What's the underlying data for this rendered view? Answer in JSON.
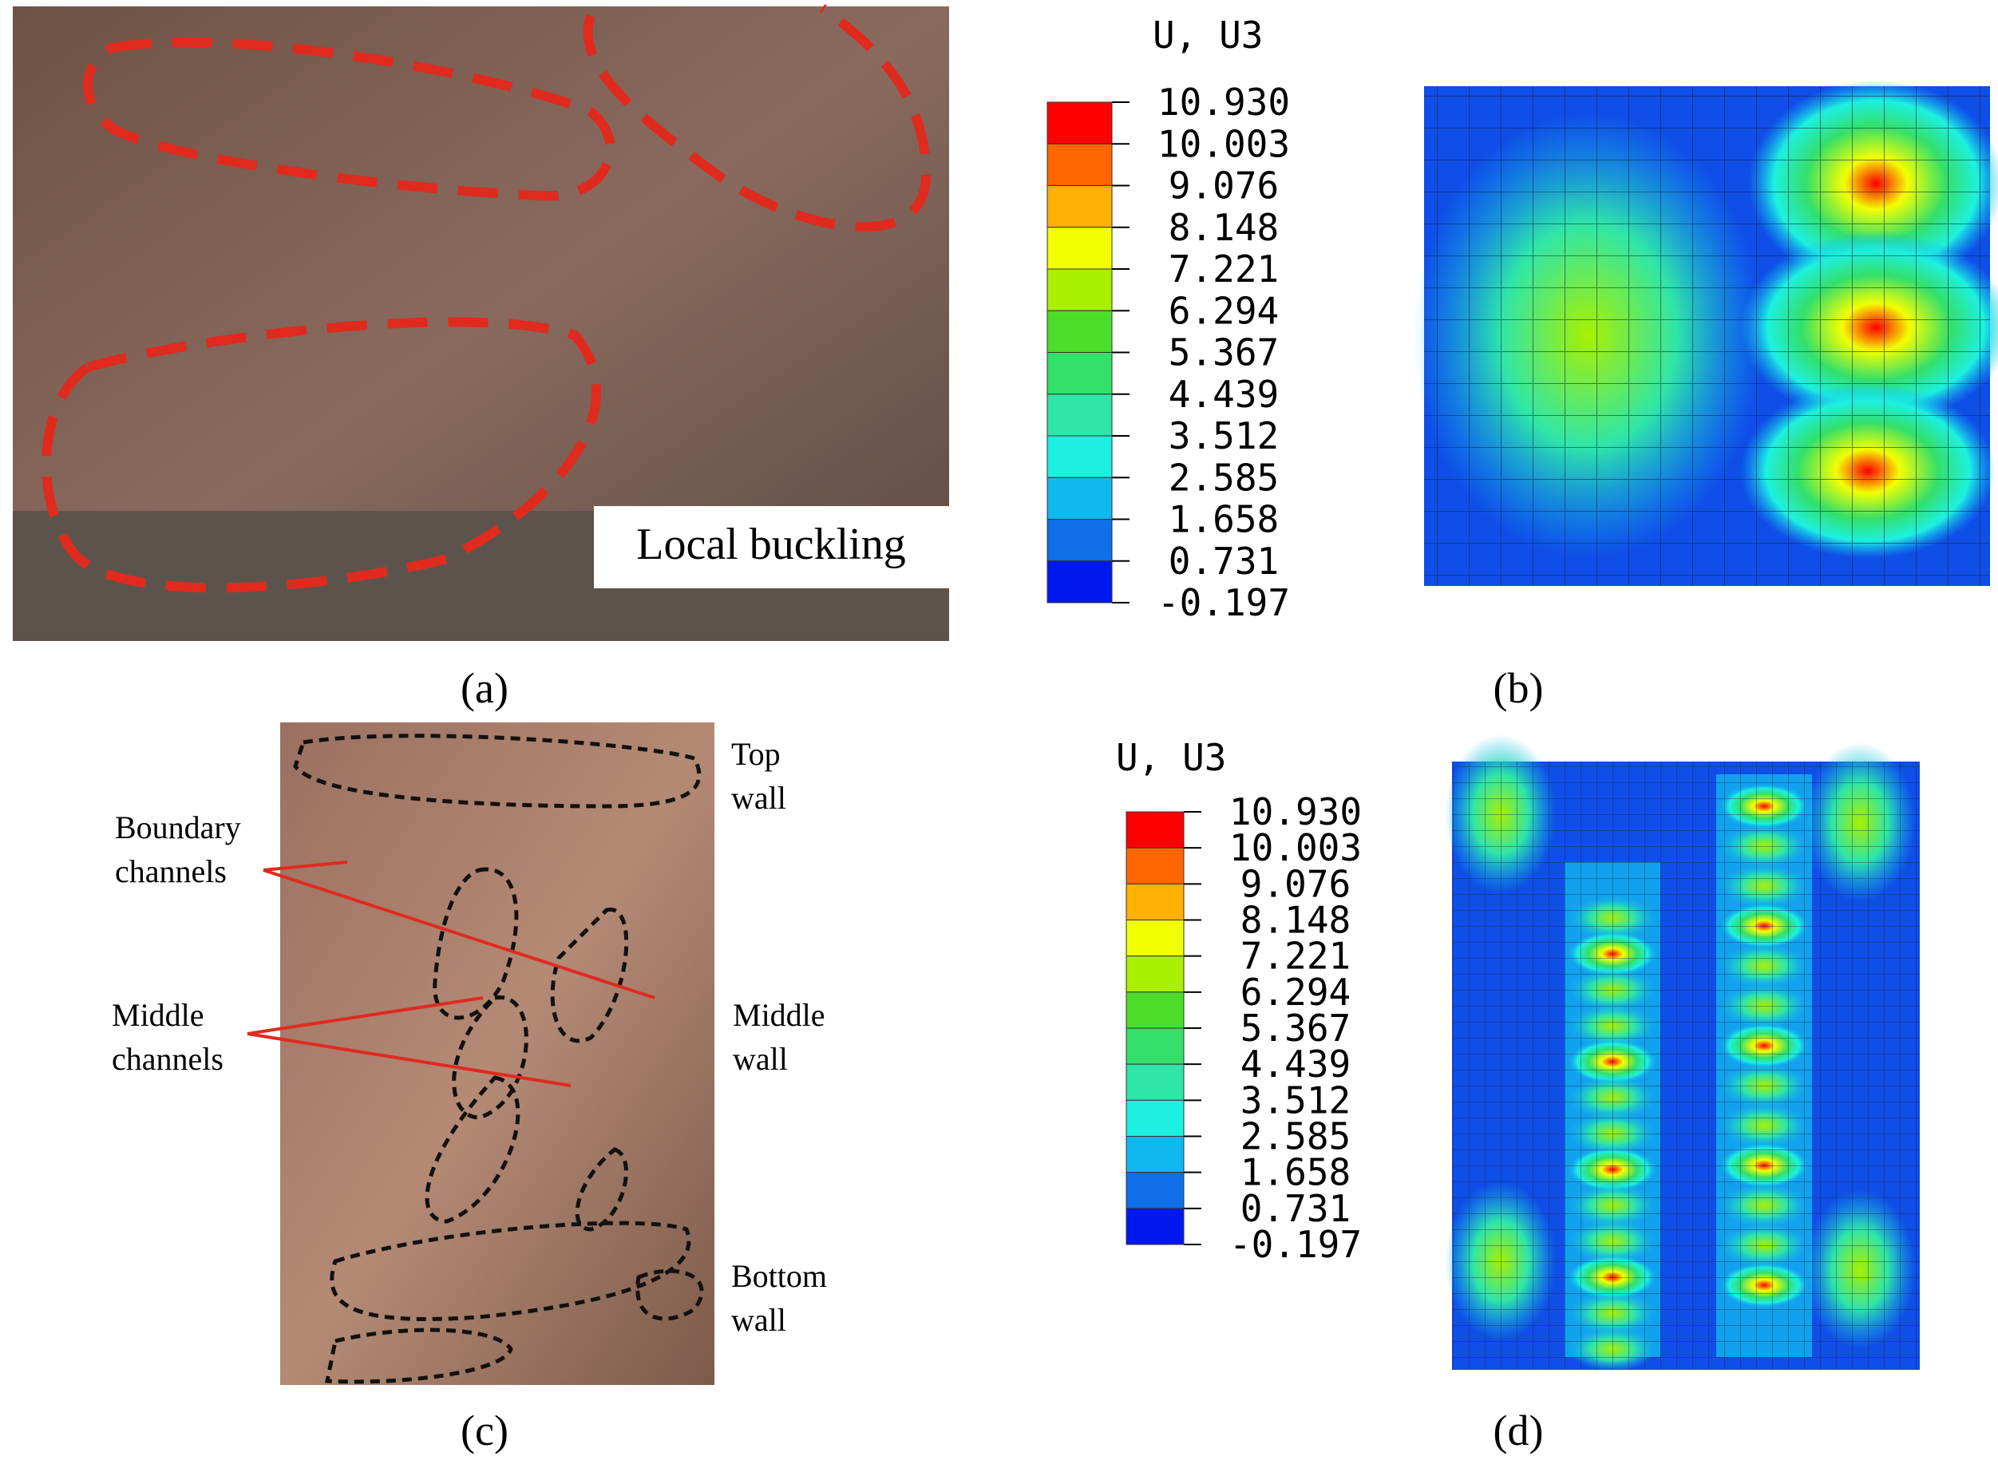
{
  "panels": [
    {
      "caption": "(a)",
      "annotation": "Local buckling"
    },
    {
      "caption": "(b)",
      "legend": {
        "title": "U, U3",
        "values": [
          "10.930",
          "10.003",
          "9.076",
          "8.148",
          "7.221",
          "6.294",
          "5.367",
          "4.439",
          "3.512",
          "2.585",
          "1.658",
          "0.731",
          "-0.197"
        ]
      }
    },
    {
      "caption": "(c)",
      "labels": [
        [
          "Top",
          "wall"
        ],
        [
          "Boundary",
          "channels"
        ],
        [
          "Middle",
          "channels"
        ],
        [
          "Middle",
          "wall"
        ],
        [
          "Bottom",
          "wall"
        ]
      ]
    },
    {
      "caption": "(d)",
      "legend": {
        "title": "U, U3",
        "values": [
          "10.930",
          "10.003",
          "9.076",
          "8.148",
          "7.221",
          "6.294",
          "5.367",
          "4.439",
          "3.512",
          "2.585",
          "1.658",
          "0.731",
          "-0.197"
        ]
      }
    }
  ],
  "legend_colors": [
    "#ff0000",
    "#ff6600",
    "#ffb000",
    "#f2ff00",
    "#a8f000",
    "#4cdc2a",
    "#34e06a",
    "#2ee6a8",
    "#1cf0e0",
    "#10b8f0",
    "#0f6ee8",
    "#0018f0"
  ]
}
